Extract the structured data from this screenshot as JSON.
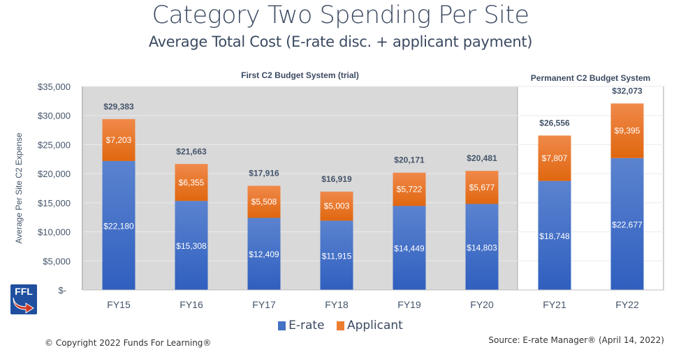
{
  "header": {
    "title": "Category Two Spending Per Site",
    "subtitle": "Average Total Cost (E-rate disc. + applicant payment)"
  },
  "logo": {
    "text": "FFL",
    "icon": "ffl-arrow-logo"
  },
  "footer": {
    "copyright": "© Copyright 2022 Funds For Learning®",
    "source": "Source: E-rate Manager® (April 14, 2022)"
  },
  "colors": {
    "erate": "#4472c4",
    "applicant": "#ed7d31",
    "trial_bg": "#d9d9d9",
    "permanent_bg": "#ffffff",
    "text": "#44546a"
  },
  "chart_data": {
    "type": "bar",
    "stacked": true,
    "title": "Category Two Spending Per Site",
    "subtitle": "Average Total Cost (E-rate disc. + applicant payment)",
    "xlabel": "",
    "ylabel": "Average Per Site C2 Expense",
    "ylim": [
      0,
      35000
    ],
    "yticks": [
      0,
      5000,
      10000,
      15000,
      20000,
      25000,
      30000,
      35000
    ],
    "ytick_labels": [
      "$-",
      "$5,000",
      "$10,000",
      "$15,000",
      "$20,000",
      "$25,000",
      "$30,000",
      "$35,000"
    ],
    "grid": true,
    "legend_position": "bottom",
    "categories": [
      "FY15",
      "FY16",
      "FY17",
      "FY18",
      "FY19",
      "FY20",
      "FY21",
      "FY22"
    ],
    "series": [
      {
        "name": "E-rate",
        "values": [
          22180,
          15308,
          12409,
          11915,
          14449,
          14803,
          18748,
          22677
        ],
        "labels": [
          "$22,180",
          "$15,308",
          "$12,409",
          "$11,915",
          "$14,449",
          "$14,803",
          "$18,748",
          "$22,677"
        ]
      },
      {
        "name": "Applicant",
        "values": [
          7203,
          6355,
          5508,
          5003,
          5722,
          5677,
          7807,
          9395
        ],
        "labels": [
          "$7,203",
          "$6,355",
          "$5,508",
          "$5,003",
          "$5,722",
          "$5,677",
          "$7,807",
          "$9,395"
        ]
      }
    ],
    "totals": [
      29383,
      21663,
      17916,
      16919,
      20171,
      20481,
      26556,
      32073
    ],
    "total_labels": [
      "$29,383",
      "$21,663",
      "$17,916",
      "$16,919",
      "$20,171",
      "$20,481",
      "$26,556",
      "$32,073"
    ],
    "regions": [
      {
        "label": "First C2 Budget System (trial)",
        "categories": [
          "FY15",
          "FY16",
          "FY17",
          "FY18",
          "FY19",
          "FY20"
        ]
      },
      {
        "label": "Permanent C2 Budget System",
        "categories": [
          "FY21",
          "FY22"
        ]
      }
    ]
  }
}
